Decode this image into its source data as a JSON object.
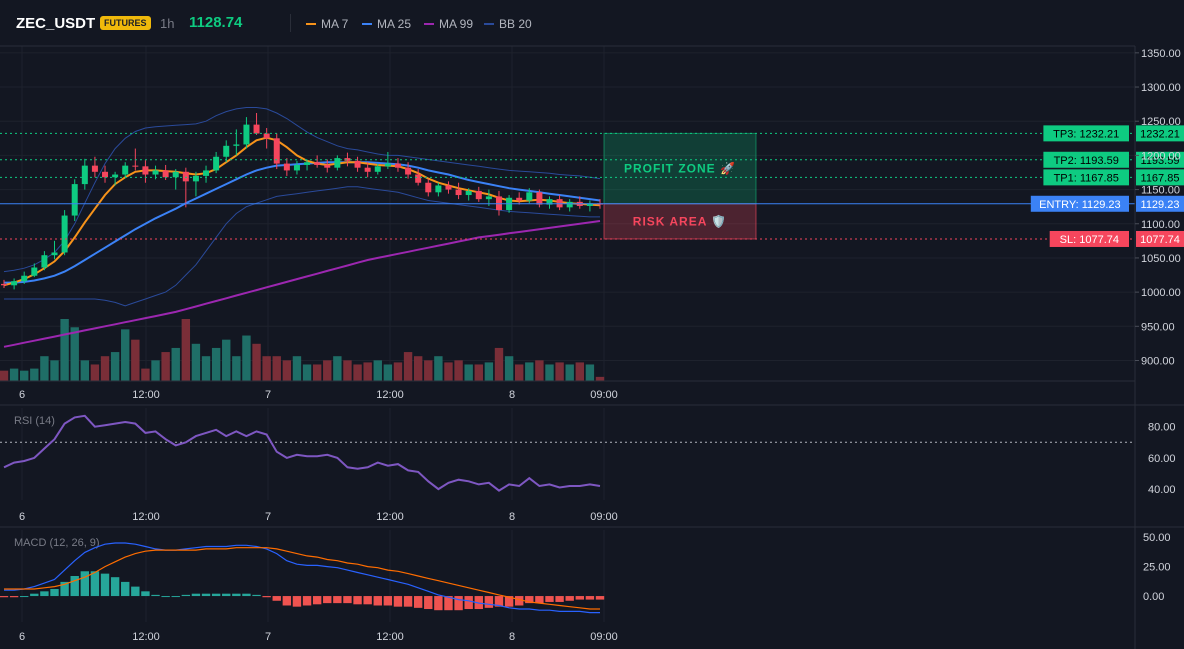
{
  "header": {
    "symbol": "ZEC_USDT",
    "badge": "FUTURES",
    "interval": "1h",
    "price": "1128.74",
    "legend": [
      {
        "label": "MA 7",
        "color": "#f7931a"
      },
      {
        "label": "MA 25",
        "color": "#3b82f6"
      },
      {
        "label": "MA 99",
        "color": "#9c27b0"
      },
      {
        "label": "BB 20",
        "color": "#2a4a9a"
      }
    ]
  },
  "colors": {
    "up": "#0ecb81",
    "down": "#f6465d",
    "bg": "#131722",
    "grid": "#1e222d"
  },
  "price_axis": {
    "ticks": [
      "1350.00",
      "1300.00",
      "1250.00",
      "1200.00",
      "1150.00",
      "1100.00",
      "1050.00",
      "1000.00",
      "950.00",
      "900.00"
    ]
  },
  "time_axis": {
    "labels": [
      "6",
      "12:00",
      "7",
      "12:00",
      "8",
      "09:00"
    ]
  },
  "levels": [
    {
      "name": "tp3",
      "label": "TP3: 1232.21",
      "price_label": "1232.21",
      "value": 1232.21,
      "color": "#0ecb81",
      "style": "dotted"
    },
    {
      "name": "tp2",
      "label": "TP2: 1193.59",
      "price_label": "1193.59",
      "value": 1193.59,
      "color": "#0ecb81",
      "style": "dotted"
    },
    {
      "name": "tp1",
      "label": "TP1: 1167.85",
      "price_label": "1167.85",
      "value": 1167.85,
      "color": "#0ecb81",
      "style": "dotted"
    },
    {
      "name": "entry",
      "label": "ENTRY: 1129.23",
      "price_label": "1129.23",
      "value": 1129.23,
      "color": "#3b82f6",
      "style": "solid"
    },
    {
      "name": "sl",
      "label": "SL: 1077.74",
      "price_label": "1077.74",
      "value": 1077.74,
      "color": "#f6465d",
      "style": "dotted"
    }
  ],
  "zones": {
    "profit_label": "PROFIT ZONE 🚀",
    "risk_label": "RISK AREA 🛡️"
  },
  "rsi": {
    "title": "RSI (14)",
    "ticks": [
      "80.00",
      "60.00",
      "40.00"
    ]
  },
  "macd": {
    "title": "MACD (12, 26, 9)",
    "ticks": [
      "50.00",
      "25.00",
      "0.00"
    ]
  },
  "chart_data": [
    {
      "type": "candlestick",
      "ylim": [
        870,
        1360
      ],
      "candles": [
        [
          1012,
          1018,
          1006,
          1010
        ],
        [
          1010,
          1020,
          1004,
          1016
        ],
        [
          1016,
          1030,
          1012,
          1024
        ],
        [
          1024,
          1042,
          1022,
          1036
        ],
        [
          1036,
          1060,
          1032,
          1054
        ],
        [
          1054,
          1075,
          1048,
          1058
        ],
        [
          1058,
          1120,
          1054,
          1112
        ],
        [
          1112,
          1165,
          1104,
          1158
        ],
        [
          1158,
          1195,
          1150,
          1185
        ],
        [
          1185,
          1198,
          1168,
          1176
        ],
        [
          1176,
          1185,
          1160,
          1168
        ],
        [
          1168,
          1176,
          1156,
          1172
        ],
        [
          1172,
          1190,
          1168,
          1185
        ],
        [
          1185,
          1210,
          1178,
          1184
        ],
        [
          1184,
          1193,
          1160,
          1172
        ],
        [
          1172,
          1185,
          1165,
          1178
        ],
        [
          1178,
          1186,
          1164,
          1168
        ],
        [
          1168,
          1180,
          1150,
          1176
        ],
        [
          1176,
          1182,
          1124,
          1162
        ],
        [
          1162,
          1176,
          1140,
          1170
        ],
        [
          1170,
          1185,
          1160,
          1178
        ],
        [
          1178,
          1205,
          1174,
          1198
        ],
        [
          1198,
          1222,
          1190,
          1214
        ],
        [
          1214,
          1238,
          1200,
          1216
        ],
        [
          1216,
          1256,
          1210,
          1245
        ],
        [
          1245,
          1262,
          1230,
          1232
        ],
        [
          1232,
          1240,
          1210,
          1225
        ],
        [
          1225,
          1232,
          1180,
          1188
        ],
        [
          1188,
          1196,
          1170,
          1178
        ],
        [
          1178,
          1192,
          1172,
          1186
        ],
        [
          1186,
          1194,
          1178,
          1190
        ],
        [
          1190,
          1200,
          1182,
          1186
        ],
        [
          1186,
          1194,
          1175,
          1182
        ],
        [
          1182,
          1200,
          1178,
          1196
        ],
        [
          1196,
          1204,
          1184,
          1192
        ],
        [
          1192,
          1198,
          1176,
          1182
        ],
        [
          1182,
          1190,
          1168,
          1176
        ],
        [
          1176,
          1188,
          1172,
          1184
        ],
        [
          1184,
          1205,
          1180,
          1188
        ],
        [
          1188,
          1196,
          1176,
          1182
        ],
        [
          1182,
          1190,
          1166,
          1172
        ],
        [
          1172,
          1180,
          1156,
          1160
        ],
        [
          1160,
          1166,
          1140,
          1146
        ],
        [
          1146,
          1160,
          1140,
          1156
        ],
        [
          1156,
          1162,
          1144,
          1150
        ],
        [
          1150,
          1160,
          1136,
          1142
        ],
        [
          1142,
          1152,
          1134,
          1148
        ],
        [
          1148,
          1154,
          1132,
          1136
        ],
        [
          1136,
          1150,
          1126,
          1140
        ],
        [
          1140,
          1148,
          1112,
          1120
        ],
        [
          1120,
          1142,
          1116,
          1138
        ],
        [
          1138,
          1146,
          1128,
          1134
        ],
        [
          1134,
          1152,
          1130,
          1146
        ],
        [
          1146,
          1150,
          1124,
          1128
        ],
        [
          1128,
          1140,
          1122,
          1136
        ],
        [
          1136,
          1142,
          1120,
          1124
        ],
        [
          1124,
          1136,
          1118,
          1132
        ],
        [
          1132,
          1140,
          1122,
          1126
        ],
        [
          1126,
          1134,
          1118,
          1130
        ],
        [
          1130,
          1136,
          1122,
          1128
        ]
      ],
      "volume": [
        5,
        6,
        5,
        6,
        12,
        10,
        30,
        26,
        10,
        8,
        12,
        14,
        25,
        20,
        6,
        10,
        14,
        16,
        30,
        18,
        12,
        16,
        20,
        12,
        22,
        18,
        12,
        12,
        10,
        12,
        8,
        8,
        10,
        12,
        10,
        8,
        9,
        10,
        8,
        9,
        14,
        12,
        10,
        12,
        9,
        10,
        8,
        8,
        9,
        16,
        12,
        8,
        9,
        10,
        8,
        9,
        8,
        9,
        8,
        2
      ],
      "ma7": [
        1010,
        1014,
        1019,
        1026,
        1035,
        1045,
        1060,
        1080,
        1102,
        1122,
        1142,
        1158,
        1168,
        1176,
        1178,
        1178,
        1177,
        1176,
        1174,
        1172,
        1174,
        1180,
        1190,
        1200,
        1212,
        1222,
        1226,
        1222,
        1212,
        1200,
        1192,
        1188,
        1186,
        1188,
        1190,
        1190,
        1188,
        1186,
        1185,
        1184,
        1180,
        1174,
        1166,
        1160,
        1156,
        1152,
        1149,
        1146,
        1143,
        1138,
        1134,
        1133,
        1134,
        1135,
        1134,
        1132,
        1130,
        1129,
        1128,
        1127
      ],
      "ma25": [
        1014,
        1014,
        1015,
        1017,
        1020,
        1024,
        1030,
        1038,
        1047,
        1056,
        1065,
        1074,
        1083,
        1092,
        1100,
        1108,
        1115,
        1122,
        1130,
        1137,
        1144,
        1151,
        1158,
        1165,
        1172,
        1178,
        1182,
        1185,
        1186,
        1187,
        1188,
        1189,
        1190,
        1190,
        1190,
        1190,
        1190,
        1189,
        1188,
        1187,
        1185,
        1182,
        1178,
        1175,
        1172,
        1168,
        1164,
        1161,
        1158,
        1155,
        1152,
        1150,
        1148,
        1146,
        1144,
        1142,
        1140,
        1138,
        1136,
        1134
      ],
      "ma99": [
        920,
        923,
        926,
        929,
        932,
        935,
        938,
        941,
        944,
        947,
        950,
        953,
        956,
        959,
        962,
        965,
        968,
        971,
        975,
        979,
        983,
        987,
        991,
        995,
        999,
        1003,
        1007,
        1011,
        1015,
        1019,
        1023,
        1027,
        1031,
        1035,
        1039,
        1043,
        1047,
        1050,
        1053,
        1056,
        1059,
        1062,
        1065,
        1068,
        1071,
        1074,
        1077,
        1080,
        1082,
        1084,
        1086,
        1088,
        1090,
        1092,
        1094,
        1096,
        1098,
        1100,
        1102,
        1104
      ],
      "bb_upper": [
        1030,
        1032,
        1035,
        1040,
        1048,
        1058,
        1075,
        1100,
        1130,
        1160,
        1188,
        1210,
        1225,
        1235,
        1240,
        1242,
        1243,
        1244,
        1245,
        1246,
        1250,
        1258,
        1264,
        1268,
        1270,
        1270,
        1268,
        1262,
        1254,
        1244,
        1234,
        1226,
        1220,
        1214,
        1210,
        1208,
        1205,
        1202,
        1200,
        1200,
        1198,
        1196,
        1194,
        1192,
        1190,
        1188,
        1186,
        1184,
        1182,
        1180,
        1178,
        1177,
        1176,
        1175,
        1174,
        1172,
        1171,
        1170,
        1168,
        1166
      ],
      "bb_lower": [
        990,
        990,
        990,
        990,
        990,
        990,
        990,
        990,
        990,
        990,
        988,
        985,
        980,
        985,
        990,
        995,
        1000,
        1010,
        1025,
        1040,
        1060,
        1080,
        1100,
        1115,
        1125,
        1130,
        1135,
        1140,
        1142,
        1144,
        1146,
        1148,
        1150,
        1152,
        1154,
        1154,
        1152,
        1150,
        1148,
        1146,
        1142,
        1138,
        1134,
        1132,
        1130,
        1128,
        1126,
        1124,
        1122,
        1120,
        1118,
        1117,
        1116,
        1115,
        1114,
        1113,
        1112,
        1111,
        1110,
        1110
      ]
    },
    {
      "type": "line",
      "title": "RSI (14)",
      "ylim": [
        33,
        92
      ],
      "threshold": 70,
      "values": [
        54,
        57,
        58,
        60,
        66,
        72,
        82,
        86,
        87,
        80,
        81,
        82,
        83,
        82,
        76,
        77,
        72,
        68,
        70,
        74,
        76,
        78,
        74,
        77,
        74,
        77,
        75,
        64,
        60,
        62,
        61,
        61,
        62,
        60,
        54,
        53,
        54,
        57,
        55,
        56,
        52,
        51,
        45,
        40,
        44,
        46,
        45,
        43,
        44,
        39,
        43,
        42,
        47,
        42,
        43,
        41,
        42,
        42,
        43,
        42
      ]
    },
    {
      "type": "line",
      "title": "MACD (12, 26, 9)",
      "ylim": [
        -22,
        56
      ],
      "macd": [
        5,
        5,
        6,
        8,
        11,
        14,
        22,
        30,
        37,
        41,
        44,
        45,
        45,
        44,
        42,
        40,
        39,
        39,
        40,
        41,
        42,
        42,
        42,
        43,
        43,
        42,
        40,
        36,
        30,
        27,
        26,
        26,
        25,
        24,
        22,
        20,
        18,
        16,
        14,
        12,
        10,
        7,
        4,
        1,
        -1,
        -3,
        -4,
        -6,
        -7,
        -8,
        -10,
        -11,
        -11,
        -12,
        -12,
        -13,
        -13,
        -13,
        -14,
        -14
      ],
      "signal": [
        6,
        6,
        6,
        6,
        7,
        8,
        10,
        13,
        16,
        20,
        25,
        29,
        33,
        36,
        38,
        39,
        39,
        39,
        39,
        39,
        40,
        40,
        40,
        41,
        41,
        41,
        41,
        40,
        38,
        36,
        34,
        33,
        31,
        30,
        28,
        27,
        25,
        24,
        22,
        21,
        19,
        17,
        15,
        13,
        11,
        9,
        7,
        5,
        3,
        1,
        -1,
        -3,
        -5,
        -6,
        -7,
        -8,
        -9,
        -10,
        -11,
        -11
      ],
      "hist": [
        -1,
        -1,
        0,
        2,
        4,
        6,
        12,
        17,
        21,
        21,
        19,
        16,
        12,
        8,
        4,
        1,
        0,
        0,
        1,
        2,
        2,
        2,
        2,
        2,
        2,
        1,
        -1,
        -4,
        -8,
        -9,
        -8,
        -7,
        -6,
        -6,
        -6,
        -7,
        -7,
        -8,
        -8,
        -9,
        -9,
        -10,
        -11,
        -12,
        -12,
        -12,
        -11,
        -11,
        -10,
        -9,
        -9,
        -8,
        -6,
        -6,
        -5,
        -5,
        -4,
        -3,
        -3,
        -3
      ]
    }
  ]
}
